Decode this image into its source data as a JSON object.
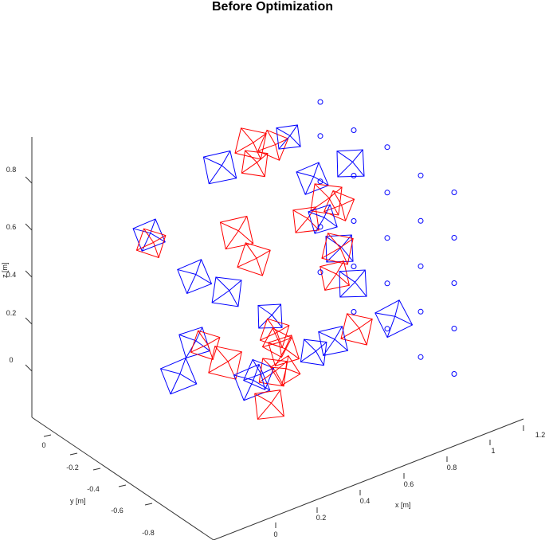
{
  "chart_data": {
    "type": "scatter",
    "title": "Before Optimization",
    "xlabel": "x [m]",
    "ylabel": "y [m]",
    "zlabel": "z [m]",
    "x_ticks": [
      "0",
      "0.2",
      "0.4",
      "0.6",
      "0.8",
      "1",
      "1.2"
    ],
    "y_ticks": [
      "0",
      "-0.2",
      "-0.4",
      "-0.6",
      "-0.8"
    ],
    "z_ticks": [
      "0",
      "0.2",
      "0.4",
      "0.6",
      "0.8"
    ],
    "grid": false,
    "colors": {
      "camera_a": "#0000ff",
      "camera_b": "#ff0000",
      "target_points": "#0000ff"
    },
    "series": [
      {
        "marker": "circle",
        "color": "#0000ff",
        "points": [
          [
            0.3,
            0.95
          ],
          [
            0.3,
            0.8
          ],
          [
            0.3,
            0.6
          ],
          [
            0.3,
            0.4
          ],
          [
            0.3,
            0.2
          ],
          [
            0.4,
            0.85
          ],
          [
            0.4,
            0.65
          ],
          [
            0.4,
            0.45
          ],
          [
            0.4,
            0.25
          ],
          [
            0.4,
            0.05
          ],
          [
            0.5,
            0.8
          ],
          [
            0.5,
            0.6
          ],
          [
            0.5,
            0.4
          ],
          [
            0.5,
            0.2
          ],
          [
            0.5,
            0.0
          ],
          [
            0.6,
            0.7
          ],
          [
            0.6,
            0.5
          ],
          [
            0.6,
            0.3
          ],
          [
            0.6,
            0.1
          ],
          [
            0.6,
            -0.1
          ],
          [
            0.7,
            0.65
          ],
          [
            0.7,
            0.45
          ],
          [
            0.7,
            0.25
          ],
          [
            0.7,
            0.05
          ],
          [
            0.7,
            -0.15
          ]
        ]
      }
    ]
  }
}
